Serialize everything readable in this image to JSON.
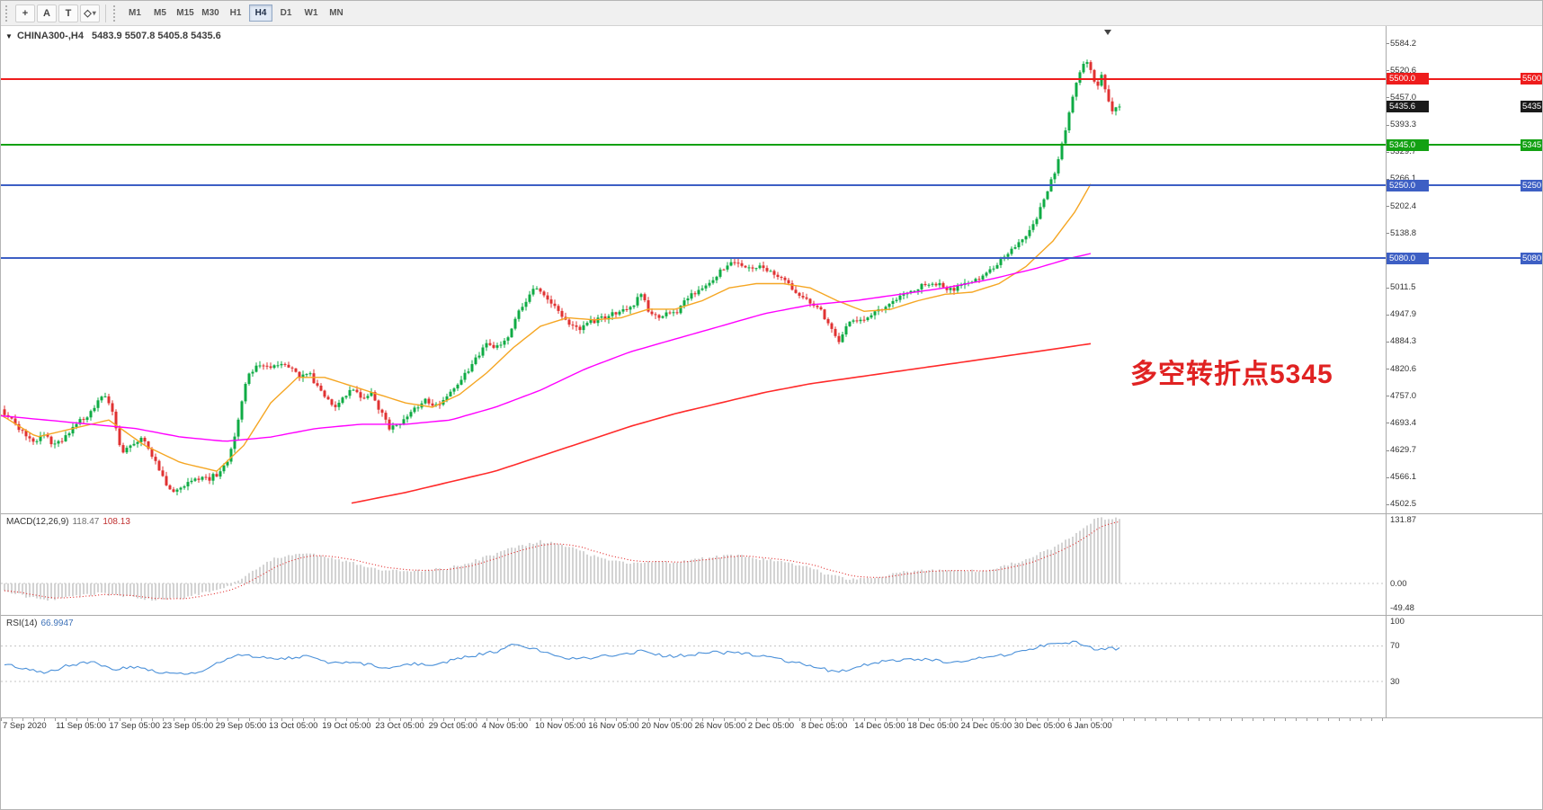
{
  "toolbar": {
    "text_tool_label": "A",
    "label_tool_label": "T",
    "icons": {
      "crosshair": "+",
      "shape": "◇",
      "caret": "▾",
      "symbol_menu": "▼"
    },
    "timeframes": [
      "M1",
      "M5",
      "M15",
      "M30",
      "H1",
      "H4",
      "D1",
      "W1",
      "MN"
    ],
    "active_timeframe": "H4"
  },
  "chart": {
    "symbol_label": "CHINA300-,H4",
    "ohlc": "5483.9 5507.8 5405.8 5435.6",
    "annotation": {
      "text": "多空转折点5345",
      "color": "#e02222"
    },
    "current_price": {
      "label": "5435.6",
      "value": 5435.6,
      "badge_color": "#1a1a1a"
    },
    "price_axis": {
      "ticks": [
        "5584.2",
        "5520.6",
        "5457.0",
        "5393.3",
        "5329.7",
        "5266.1",
        "5202.4",
        "5138.8",
        "5075.2",
        "5011.5",
        "4947.9",
        "4884.3",
        "4820.6",
        "4757.0",
        "4693.4",
        "4629.7",
        "4566.1",
        "4502.5"
      ]
    },
    "time_axis": [
      "7 Sep 2020",
      "11 Sep 05:00",
      "17 Sep 05:00",
      "23 Sep 05:00",
      "29 Sep 05:00",
      "13 Oct 05:00",
      "19 Oct 05:00",
      "23 Oct 05:00",
      "29 Oct 05:00",
      "4 Nov 05:00",
      "10 Nov 05:00",
      "16 Nov 05:00",
      "20 Nov 05:00",
      "26 Nov 05:00",
      "2 Dec 05:00",
      "8 Dec 05:00",
      "14 Dec 05:00",
      "18 Dec 05:00",
      "24 Dec 05:00",
      "30 Dec 05:00",
      "6 Jan 05:00"
    ]
  },
  "chart_data": {
    "type": "candlestick+indicators",
    "symbol": "CHINA300",
    "timeframe": "H4",
    "colors": {
      "up": "#0fab44",
      "down": "#e03232",
      "ma_fast": "#f5a623",
      "ma_mid": "#ff00ff",
      "ma_slow": "#ff2a2a",
      "macd_hist": "#c8c8c8",
      "macd_signal": "#e02020",
      "rsi": "#4a90d9",
      "level_dash": "#c4c4c4"
    },
    "hlines": [
      {
        "value": 5500.0,
        "label": "5500.0",
        "color": "#ee1c1c"
      },
      {
        "value": 5345.0,
        "label": "5345.0",
        "color": "#13a113"
      },
      {
        "value": 5250.0,
        "label": "5250.0",
        "color": "#3d5fc4"
      },
      {
        "value": 5080.0,
        "label": "5080.0",
        "color": "#3d5fc4"
      }
    ],
    "price_path": [
      [
        0,
        4725
      ],
      [
        12,
        4700
      ],
      [
        24,
        4672
      ],
      [
        36,
        4648
      ],
      [
        48,
        4665
      ],
      [
        60,
        4640
      ],
      [
        72,
        4660
      ],
      [
        84,
        4690
      ],
      [
        96,
        4710
      ],
      [
        108,
        4745
      ],
      [
        118,
        4760
      ],
      [
        126,
        4700
      ],
      [
        134,
        4625
      ],
      [
        146,
        4645
      ],
      [
        158,
        4660
      ],
      [
        170,
        4610
      ],
      [
        182,
        4555
      ],
      [
        194,
        4530
      ],
      [
        206,
        4554
      ],
      [
        218,
        4565
      ],
      [
        230,
        4560
      ],
      [
        242,
        4575
      ],
      [
        252,
        4600
      ],
      [
        262,
        4680
      ],
      [
        272,
        4790
      ],
      [
        282,
        4825
      ],
      [
        292,
        4830
      ],
      [
        302,
        4820
      ],
      [
        312,
        4835
      ],
      [
        322,
        4820
      ],
      [
        332,
        4800
      ],
      [
        342,
        4810
      ],
      [
        352,
        4780
      ],
      [
        362,
        4750
      ],
      [
        372,
        4735
      ],
      [
        382,
        4760
      ],
      [
        392,
        4770
      ],
      [
        402,
        4755
      ],
      [
        412,
        4760
      ],
      [
        422,
        4720
      ],
      [
        432,
        4680
      ],
      [
        442,
        4690
      ],
      [
        452,
        4710
      ],
      [
        462,
        4730
      ],
      [
        472,
        4748
      ],
      [
        482,
        4735
      ],
      [
        492,
        4742
      ],
      [
        502,
        4770
      ],
      [
        512,
        4800
      ],
      [
        522,
        4820
      ],
      [
        532,
        4855
      ],
      [
        542,
        4880
      ],
      [
        552,
        4870
      ],
      [
        562,
        4890
      ],
      [
        572,
        4940
      ],
      [
        582,
        4975
      ],
      [
        592,
        5010
      ],
      [
        602,
        4995
      ],
      [
        612,
        4975
      ],
      [
        622,
        4945
      ],
      [
        632,
        4925
      ],
      [
        642,
        4910
      ],
      [
        652,
        4925
      ],
      [
        662,
        4935
      ],
      [
        672,
        4940
      ],
      [
        682,
        4950
      ],
      [
        692,
        4960
      ],
      [
        702,
        4965
      ],
      [
        712,
        4995
      ],
      [
        722,
        4950
      ],
      [
        732,
        4940
      ],
      [
        742,
        4952
      ],
      [
        752,
        4955
      ],
      [
        762,
        4980
      ],
      [
        772,
        5000
      ],
      [
        782,
        5015
      ],
      [
        792,
        5030
      ],
      [
        802,
        5055
      ],
      [
        812,
        5075
      ],
      [
        822,
        5065
      ],
      [
        832,
        5055
      ],
      [
        842,
        5060
      ],
      [
        852,
        5050
      ],
      [
        862,
        5035
      ],
      [
        872,
        5025
      ],
      [
        882,
        5000
      ],
      [
        892,
        4990
      ],
      [
        902,
        4975
      ],
      [
        912,
        4960
      ],
      [
        922,
        4915
      ],
      [
        932,
        4880
      ],
      [
        942,
        4925
      ],
      [
        952,
        4935
      ],
      [
        962,
        4940
      ],
      [
        972,
        4955
      ],
      [
        982,
        4965
      ],
      [
        992,
        4980
      ],
      [
        1002,
        4990
      ],
      [
        1012,
        5000
      ],
      [
        1022,
        5015
      ],
      [
        1032,
        5020
      ],
      [
        1042,
        5018
      ],
      [
        1052,
        5005
      ],
      [
        1062,
        5010
      ],
      [
        1072,
        5018
      ],
      [
        1082,
        5028
      ],
      [
        1092,
        5040
      ],
      [
        1102,
        5052
      ],
      [
        1112,
        5078
      ],
      [
        1122,
        5095
      ],
      [
        1132,
        5115
      ],
      [
        1142,
        5140
      ],
      [
        1152,
        5175
      ],
      [
        1162,
        5230
      ],
      [
        1172,
        5280
      ],
      [
        1182,
        5360
      ],
      [
        1192,
        5460
      ],
      [
        1200,
        5520
      ],
      [
        1206,
        5545
      ],
      [
        1212,
        5520
      ],
      [
        1218,
        5480
      ],
      [
        1224,
        5505
      ],
      [
        1230,
        5465
      ],
      [
        1236,
        5430
      ],
      [
        1242,
        5436
      ]
    ],
    "ma_fast_orange": [
      [
        0,
        4712
      ],
      [
        40,
        4660
      ],
      [
        80,
        4680
      ],
      [
        120,
        4700
      ],
      [
        160,
        4640
      ],
      [
        200,
        4600
      ],
      [
        240,
        4580
      ],
      [
        270,
        4640
      ],
      [
        300,
        4740
      ],
      [
        330,
        4800
      ],
      [
        360,
        4800
      ],
      [
        390,
        4780
      ],
      [
        420,
        4760
      ],
      [
        450,
        4740
      ],
      [
        480,
        4730
      ],
      [
        510,
        4760
      ],
      [
        540,
        4810
      ],
      [
        570,
        4870
      ],
      [
        600,
        4920
      ],
      [
        630,
        4940
      ],
      [
        660,
        4935
      ],
      [
        690,
        4940
      ],
      [
        720,
        4960
      ],
      [
        750,
        4960
      ],
      [
        780,
        4980
      ],
      [
        810,
        5010
      ],
      [
        840,
        5020
      ],
      [
        870,
        5020
      ],
      [
        900,
        5010
      ],
      [
        930,
        4980
      ],
      [
        960,
        4955
      ],
      [
        990,
        4960
      ],
      [
        1020,
        4980
      ],
      [
        1050,
        4995
      ],
      [
        1080,
        5000
      ],
      [
        1110,
        5020
      ],
      [
        1140,
        5060
      ],
      [
        1170,
        5120
      ],
      [
        1195,
        5190
      ],
      [
        1215,
        5265
      ]
    ],
    "ma_mid_magenta": [
      [
        0,
        4710
      ],
      [
        50,
        4700
      ],
      [
        100,
        4690
      ],
      [
        150,
        4680
      ],
      [
        200,
        4660
      ],
      [
        250,
        4650
      ],
      [
        300,
        4660
      ],
      [
        350,
        4680
      ],
      [
        400,
        4690
      ],
      [
        450,
        4690
      ],
      [
        500,
        4700
      ],
      [
        550,
        4730
      ],
      [
        600,
        4770
      ],
      [
        650,
        4820
      ],
      [
        700,
        4860
      ],
      [
        750,
        4890
      ],
      [
        800,
        4920
      ],
      [
        850,
        4950
      ],
      [
        900,
        4970
      ],
      [
        950,
        4980
      ],
      [
        1000,
        4995
      ],
      [
        1050,
        5010
      ],
      [
        1100,
        5030
      ],
      [
        1150,
        5055
      ],
      [
        1190,
        5080
      ],
      [
        1215,
        5092
      ]
    ],
    "ma_slow_red": [
      [
        390,
        4505
      ],
      [
        450,
        4530
      ],
      [
        500,
        4555
      ],
      [
        550,
        4580
      ],
      [
        600,
        4615
      ],
      [
        650,
        4650
      ],
      [
        700,
        4685
      ],
      [
        750,
        4715
      ],
      [
        800,
        4740
      ],
      [
        850,
        4765
      ],
      [
        900,
        4785
      ],
      [
        950,
        4800
      ],
      [
        1000,
        4815
      ],
      [
        1050,
        4830
      ],
      [
        1100,
        4845
      ],
      [
        1150,
        4860
      ],
      [
        1215,
        4880
      ]
    ],
    "macd": {
      "label": "MACD(12,26,9)",
      "value_main": "118.47",
      "value_signal": "108.13",
      "axis": [
        "131.87",
        "0.00",
        "-49.48"
      ],
      "path": [
        [
          0,
          -12
        ],
        [
          25,
          -25
        ],
        [
          50,
          -32
        ],
        [
          80,
          -28
        ],
        [
          110,
          -20
        ],
        [
          140,
          -26
        ],
        [
          170,
          -33
        ],
        [
          200,
          -30
        ],
        [
          230,
          -18
        ],
        [
          255,
          -5
        ],
        [
          275,
          20
        ],
        [
          300,
          48
        ],
        [
          325,
          60
        ],
        [
          350,
          58
        ],
        [
          375,
          48
        ],
        [
          400,
          38
        ],
        [
          425,
          28
        ],
        [
          450,
          24
        ],
        [
          475,
          26
        ],
        [
          500,
          32
        ],
        [
          525,
          45
        ],
        [
          550,
          60
        ],
        [
          575,
          75
        ],
        [
          600,
          85
        ],
        [
          620,
          82
        ],
        [
          645,
          65
        ],
        [
          670,
          48
        ],
        [
          695,
          42
        ],
        [
          720,
          45
        ],
        [
          745,
          42
        ],
        [
          770,
          48
        ],
        [
          795,
          55
        ],
        [
          820,
          57
        ],
        [
          845,
          50
        ],
        [
          870,
          42
        ],
        [
          895,
          34
        ],
        [
          920,
          18
        ],
        [
          945,
          8
        ],
        [
          970,
          12
        ],
        [
          995,
          20
        ],
        [
          1020,
          26
        ],
        [
          1045,
          28
        ],
        [
          1070,
          24
        ],
        [
          1095,
          28
        ],
        [
          1120,
          38
        ],
        [
          1145,
          52
        ],
        [
          1170,
          72
        ],
        [
          1195,
          98
        ],
        [
          1210,
          120
        ],
        [
          1218,
          131
        ]
      ]
    },
    "rsi": {
      "label": "RSI(14)",
      "value": "66.9947",
      "axis": [
        "100",
        "70",
        "30"
      ],
      "path": [
        [
          0,
          50
        ],
        [
          25,
          45
        ],
        [
          50,
          40
        ],
        [
          75,
          48
        ],
        [
          100,
          52
        ],
        [
          125,
          44
        ],
        [
          150,
          47
        ],
        [
          175,
          40
        ],
        [
          200,
          38
        ],
        [
          225,
          42
        ],
        [
          250,
          55
        ],
        [
          265,
          60
        ],
        [
          290,
          58
        ],
        [
          315,
          56
        ],
        [
          340,
          58
        ],
        [
          365,
          50
        ],
        [
          390,
          52
        ],
        [
          415,
          48
        ],
        [
          430,
          44
        ],
        [
          455,
          50
        ],
        [
          480,
          48
        ],
        [
          505,
          55
        ],
        [
          530,
          60
        ],
        [
          555,
          65
        ],
        [
          570,
          72
        ],
        [
          590,
          68
        ],
        [
          615,
          60
        ],
        [
          640,
          55
        ],
        [
          665,
          58
        ],
        [
          690,
          60
        ],
        [
          715,
          65
        ],
        [
          740,
          58
        ],
        [
          765,
          60
        ],
        [
          790,
          63
        ],
        [
          815,
          62
        ],
        [
          840,
          60
        ],
        [
          865,
          55
        ],
        [
          890,
          50
        ],
        [
          915,
          44
        ],
        [
          930,
          40
        ],
        [
          955,
          48
        ],
        [
          980,
          52
        ],
        [
          1005,
          55
        ],
        [
          1030,
          55
        ],
        [
          1055,
          52
        ],
        [
          1080,
          55
        ],
        [
          1105,
          58
        ],
        [
          1130,
          62
        ],
        [
          1155,
          70
        ],
        [
          1175,
          73
        ],
        [
          1195,
          75
        ],
        [
          1205,
          70
        ],
        [
          1215,
          67
        ]
      ]
    }
  }
}
